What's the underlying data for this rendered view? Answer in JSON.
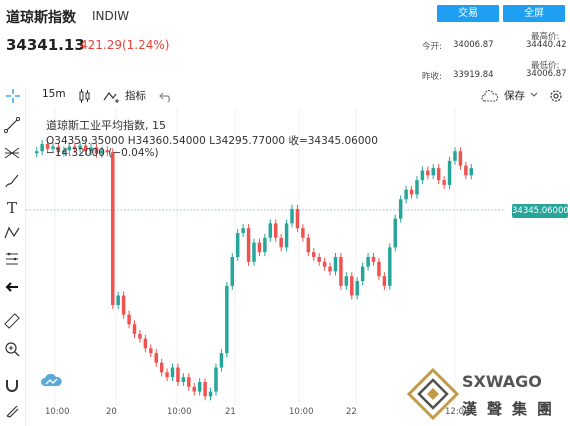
{
  "header": {
    "title": "道琼斯指数",
    "code": "INDIW",
    "trade_btn": "交易",
    "full_btn": "全屏",
    "price": "34341.13",
    "change": "421.29(1.24%)",
    "open_label": "今开:",
    "open": "34006.87",
    "prev_label": "昨收:",
    "prev": "33919.84",
    "high_label": "最高价:",
    "high": "34440.42",
    "low_label": "最低价:",
    "low": "34006.87"
  },
  "toolbar": {
    "interval": "15m",
    "indicator": "指标",
    "save": "保存"
  },
  "legend": {
    "name": "道琼斯工业平均指数, 15",
    "ohlc": "O34359.35000  H34360.54000  L34295.77000  收=34345.06000",
    "delta": "−14.32000 (−0.04%)"
  },
  "price_tag": "34345.06000",
  "x_labels": [
    "10:00",
    "20",
    "10:00",
    "21",
    "10:00",
    "22",
    "12:00"
  ],
  "watermark": {
    "brand": "SXWAGO",
    "chinese": "漢聲集團"
  },
  "colors": {
    "up": "#26a69a",
    "down": "#ef5350",
    "accent": "#1e9ff2"
  },
  "chart_data": {
    "type": "candlestick",
    "title": "道琼斯工业平均指数, 15",
    "x": [
      "10:00",
      "20",
      "10:00",
      "21",
      "10:00",
      "22",
      "12:00"
    ],
    "last": 34345.06,
    "ylim": [
      33850,
      34470
    ],
    "candles_close_estimate": [
      34380,
      34395,
      34385,
      34390,
      34378,
      34382,
      34390,
      34385,
      34392,
      34380,
      34388,
      34375,
      34382,
      34378,
      34060,
      34080,
      34040,
      34020,
      34000,
      33990,
      33970,
      33960,
      33940,
      33920,
      33910,
      33930,
      33900,
      33910,
      33890,
      33880,
      33900,
      33870,
      33880,
      33930,
      33960,
      34100,
      34160,
      34210,
      34220,
      34150,
      34190,
      34170,
      34200,
      34230,
      34200,
      34180,
      34230,
      34260,
      34220,
      34200,
      34170,
      34160,
      34150,
      34140,
      34130,
      34160,
      34100,
      34120,
      34080,
      34110,
      34140,
      34160,
      34150,
      34120,
      34100,
      34180,
      34240,
      34280,
      34300,
      34290,
      34320,
      34340,
      34330,
      34345,
      34320,
      34310,
      34360,
      34380,
      34350,
      34330,
      34345
    ]
  }
}
